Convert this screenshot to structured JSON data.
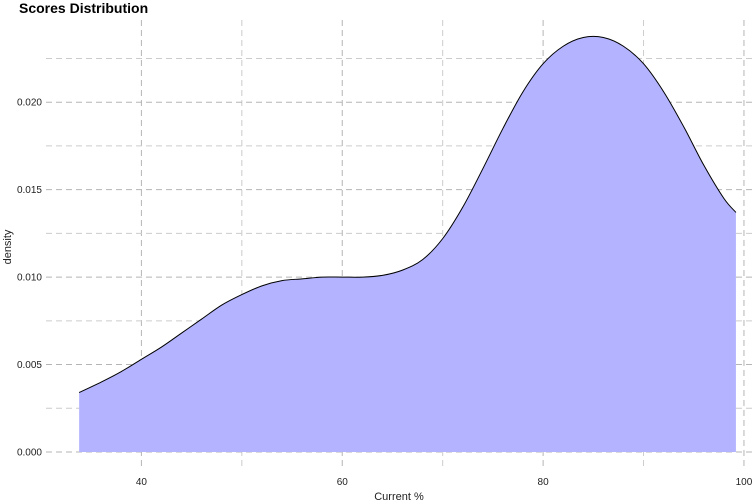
{
  "chart_data": {
    "type": "area",
    "title": "Scores Distribution",
    "xlabel": "Current %",
    "ylabel": "density",
    "xlim": [
      30.5,
      101
    ],
    "ylim": [
      -0.0008,
      0.0247
    ],
    "x_ticks": [
      40,
      60,
      80,
      100
    ],
    "x_tick_labels": [
      "40",
      "60",
      "80",
      "100"
    ],
    "y_ticks": [
      0.0,
      0.005,
      0.01,
      0.015,
      0.02
    ],
    "y_tick_labels": [
      "0.000",
      "0.005",
      "0.010",
      "0.015",
      "0.020"
    ],
    "grid": true,
    "legend": false,
    "fill_color": "#b3b3ff",
    "line_color": "#000000",
    "series": [
      {
        "x": [
          33.8,
          36,
          38,
          40,
          42,
          44,
          46,
          48,
          50,
          52,
          54,
          56,
          58,
          60,
          62,
          64,
          66,
          68,
          70,
          72,
          74,
          76,
          78,
          80,
          82,
          84,
          86,
          88,
          90,
          92,
          94,
          96,
          98,
          99.2
        ],
        "values": [
          0.0034,
          0.004,
          0.0046,
          0.0053,
          0.006,
          0.0068,
          0.0076,
          0.0084,
          0.009,
          0.0095,
          0.0098,
          0.0099,
          0.01,
          0.01,
          0.01,
          0.0101,
          0.0104,
          0.011,
          0.0122,
          0.014,
          0.0162,
          0.0185,
          0.0206,
          0.0222,
          0.0232,
          0.0237,
          0.0237,
          0.0232,
          0.0222,
          0.0206,
          0.0186,
          0.0164,
          0.0145,
          0.0137
        ]
      }
    ]
  }
}
